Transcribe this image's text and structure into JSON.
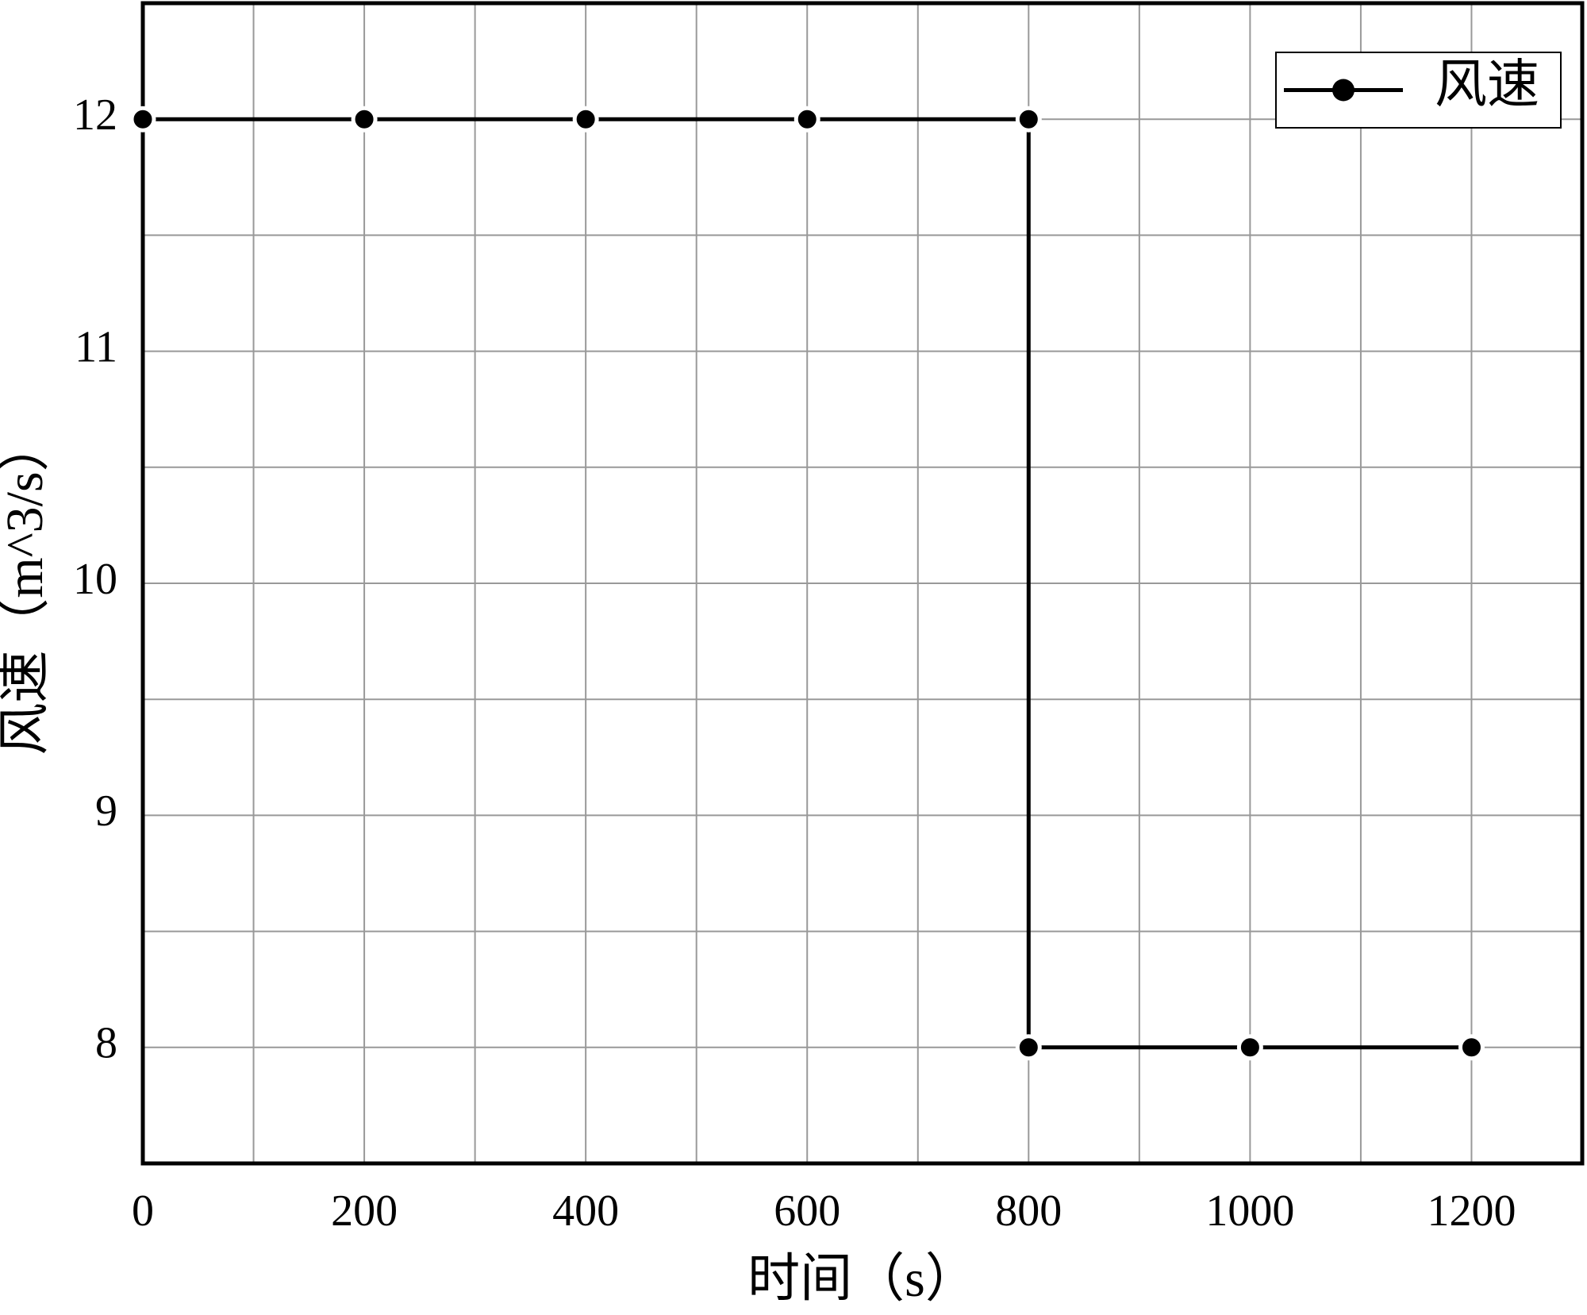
{
  "chart_data": {
    "type": "line",
    "xlabel": "时间（s）",
    "ylabel": "风速（m^3/s）",
    "x": [
      0,
      200,
      400,
      600,
      800,
      800,
      1000,
      1200
    ],
    "series": [
      {
        "name": "风速",
        "color": "#000000",
        "values": [
          12,
          12,
          12,
          12,
          12,
          8,
          8,
          8
        ]
      }
    ],
    "xlim": [
      0,
      1300
    ],
    "xticks": [
      0,
      200,
      400,
      600,
      800,
      1000,
      1200
    ],
    "ylim": [
      7.5,
      12.5
    ],
    "yticks": [
      8,
      9,
      10,
      11,
      12
    ],
    "x_minor_gridlines": [
      100,
      300,
      500,
      700,
      900,
      1100
    ],
    "y_minor_gridlines": [
      8.5,
      9.5,
      10.5,
      11.5
    ],
    "grid": true,
    "markers": true,
    "legend": "upper right"
  }
}
